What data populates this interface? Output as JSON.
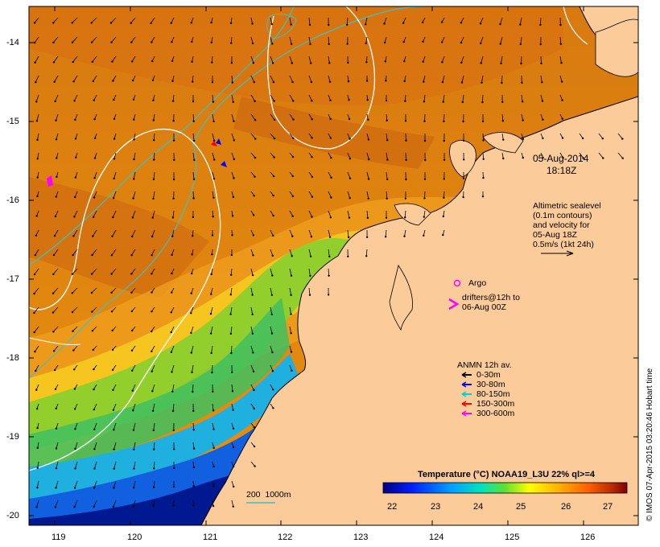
{
  "map": {
    "date_label": "05-Aug-2014",
    "time_label": "18:18Z",
    "lon_ticks": [
      "119",
      "120",
      "121",
      "122",
      "123",
      "124",
      "125",
      "126"
    ],
    "lat_ticks": [
      "-14",
      "-15",
      "-16",
      "-17",
      "-18",
      "-19",
      "-20"
    ],
    "altimetry_note": [
      "Altimetric sealevel",
      "(0.1m contours)",
      "and velocity for",
      "05-Aug 18Z",
      "0.5m/s (1kt 24h)"
    ],
    "argo_label": "Argo",
    "drifters_label": [
      "drifters@12h to",
      "06-Aug 00Z"
    ],
    "mooring_legend": {
      "title": "ANMN 12h av.",
      "items": [
        {
          "label": "0-30m",
          "color": "#000000"
        },
        {
          "label": "30-80m",
          "color": "#0000ff"
        },
        {
          "label": "80-150m",
          "color": "#00d0d0"
        },
        {
          "label": "150-300m",
          "color": "#ff0000"
        },
        {
          "label": "300-600m",
          "color": "#ff00ff"
        }
      ]
    },
    "isobath_label": "200  1000m",
    "colorbar_title": "Temperature (°C) NOAA19_L3U 22% ql>=4",
    "colorbar_ticks": [
      "22",
      "23",
      "24",
      "25",
      "26",
      "27"
    ],
    "credit": "© IMOS 07-Apr-2015 03:20:46 Hobart time",
    "colors": {
      "land": "#fccb9a",
      "isobath": "#40c0c0",
      "contour": "#ffffff",
      "argo": "#ff00ff"
    }
  }
}
